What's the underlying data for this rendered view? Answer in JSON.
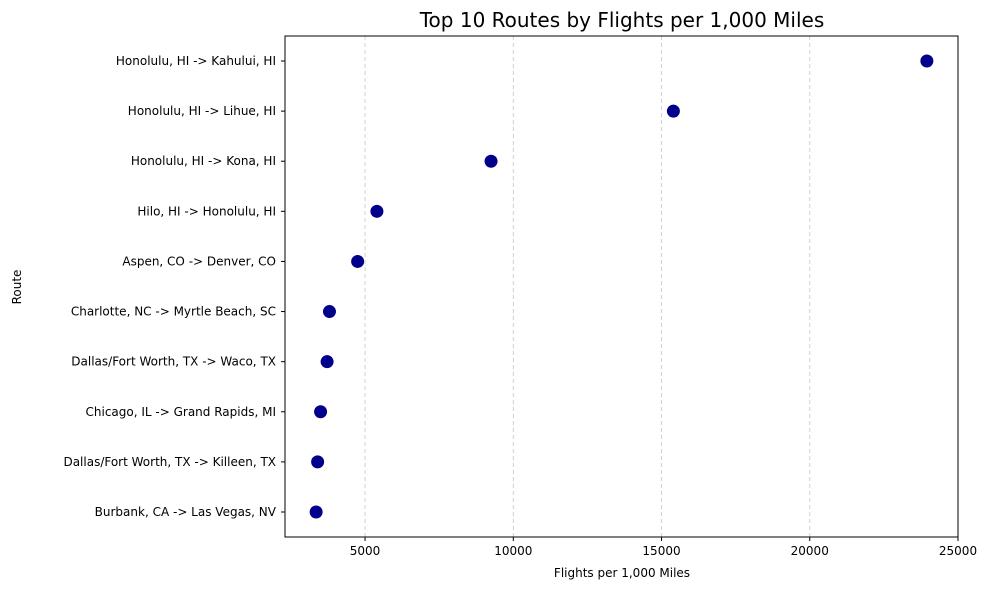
{
  "colors": {
    "marker": "#00008b",
    "background": "#ffffff"
  },
  "chart_data": {
    "type": "scatter",
    "title": "Top 10 Routes by Flights per 1,000 Miles",
    "xlabel": "Flights per 1,000 Miles",
    "ylabel": "Route",
    "xlim": [
      2300,
      25000
    ],
    "xticks": [
      5000,
      10000,
      15000,
      20000,
      25000
    ],
    "grid": "vertical-dashed",
    "categories": [
      "Honolulu, HI -> Kahului, HI",
      "Honolulu, HI -> Lihue, HI",
      "Honolulu, HI -> Kona, HI",
      "Hilo, HI -> Honolulu, HI",
      "Aspen, CO -> Denver, CO",
      "Charlotte, NC -> Myrtle Beach, SC",
      "Dallas/Fort Worth, TX -> Waco, TX",
      "Chicago, IL -> Grand Rapids, MI",
      "Dallas/Fort Worth, TX -> Killeen, TX",
      "Burbank, CA -> Las Vegas, NV"
    ],
    "values": [
      23950,
      15400,
      9250,
      5400,
      4750,
      3800,
      3720,
      3500,
      3400,
      3350
    ]
  }
}
